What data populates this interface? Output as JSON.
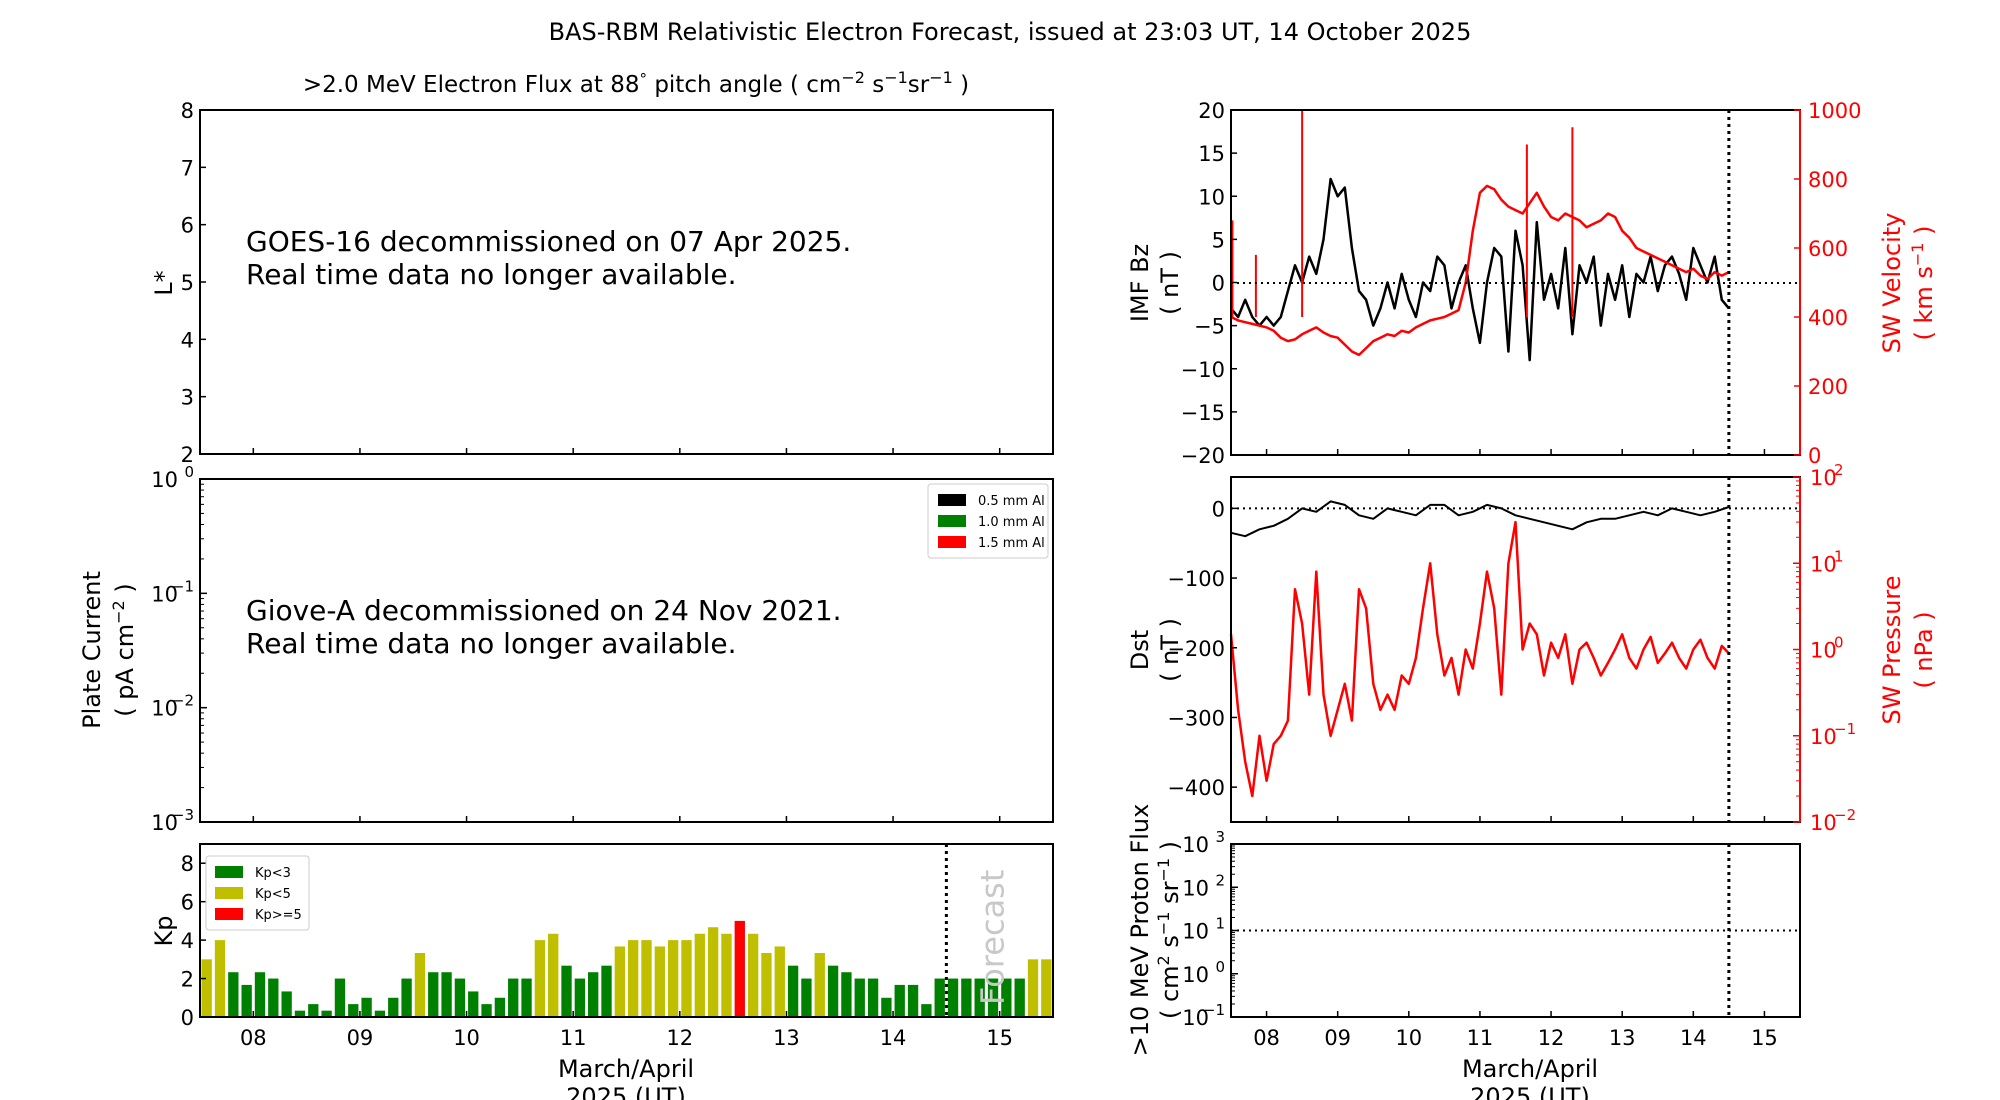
{
  "title": "BAS-RBM Relativistic Electron Forecast, issued at 23:03 UT, 14 October 2025",
  "x_axis": {
    "range": [
      7.5,
      15.5
    ],
    "ticks": [
      8,
      9,
      10,
      11,
      12,
      13,
      14,
      15
    ],
    "tick_labels": [
      "08",
      "09",
      "10",
      "11",
      "12",
      "13",
      "14",
      "15"
    ],
    "label_line1": "March/April",
    "label_line2": "2025 (UT)",
    "now_marker": 14.5
  },
  "chart_data": [
    {
      "id": "electron-flux",
      "type": "heatmap",
      "title": ">2.0 MeV Electron Flux at 88° pitch angle ( cm⁻² s⁻¹ sr⁻¹ )",
      "title_main": ">2.0 MeV Electron Flux at 88",
      "title_deg": "°",
      "title_units": "pitch angle ( cm",
      "ylabel": "L*",
      "ylim": [
        2,
        8
      ],
      "yticks": [
        2,
        3,
        4,
        5,
        6,
        7,
        8
      ],
      "message_line1": "GOES-16 decommissioned on 07 Apr 2025.",
      "message_line2": "Real time data no longer available."
    },
    {
      "id": "plate-current",
      "type": "line",
      "ylabel_line1": "Plate Current",
      "ylabel_line2": "( pA cm⁻² )",
      "yscale": "log",
      "ylim": [
        0.001,
        1
      ],
      "ytick_exponents": [
        -3,
        -2,
        -1,
        0
      ],
      "legend": [
        {
          "label": "0.5 mm Al",
          "color": "#000000"
        },
        {
          "label": "1.0 mm Al",
          "color": "#008000"
        },
        {
          "label": "1.5 mm Al",
          "color": "#ff0000"
        }
      ],
      "legend_position": "top-right",
      "message_line1": "Giove-A decommissioned on 24 Nov 2021.",
      "message_line2": "Real time data no longer available."
    },
    {
      "id": "kp",
      "type": "bar",
      "ylabel": "Kp",
      "ylim": [
        0,
        9
      ],
      "yticks": [
        0,
        2,
        4,
        6,
        8
      ],
      "bin_hours": 3,
      "start_day": 7.5,
      "values": [
        3.0,
        4.0,
        2.33,
        1.67,
        2.33,
        2.0,
        1.33,
        0.33,
        0.67,
        0.33,
        2.0,
        0.67,
        1.0,
        0.33,
        1.0,
        2.0,
        3.33,
        2.33,
        2.33,
        2.0,
        1.33,
        0.67,
        1.0,
        2.0,
        2.0,
        4.0,
        4.33,
        2.67,
        2.0,
        2.33,
        2.67,
        3.67,
        4.0,
        4.0,
        3.67,
        4.0,
        4.0,
        4.33,
        4.67,
        4.33,
        5.0,
        4.33,
        3.33,
        3.67,
        2.67,
        2.0,
        3.33,
        2.67,
        2.33,
        2.0,
        2.0,
        1.0,
        1.67,
        1.67,
        0.67,
        2.0,
        2.0,
        2.0,
        2.0,
        2.0,
        2.0,
        2.0,
        3.0,
        3.0
      ],
      "legend": [
        {
          "label": "Kp<3",
          "color": "#008000"
        },
        {
          "label": "Kp<5",
          "color": "#bfbf00"
        },
        {
          "label": "Kp>=5",
          "color": "#ff0000"
        }
      ],
      "legend_position": "top-left",
      "forecast_label": "Forecast"
    },
    {
      "id": "imf-sw",
      "type": "line",
      "ylabel_line1": "IMF Bz",
      "ylabel_line2": "( nT )",
      "ylim": [
        -20,
        20
      ],
      "yticks": [
        -20,
        -15,
        -10,
        -5,
        0,
        5,
        10,
        15,
        20
      ],
      "y2label_line1": "SW Velocity",
      "y2label_line2": "( km s⁻¹ )",
      "y2lim": [
        0,
        1000
      ],
      "y2ticks": [
        0,
        200,
        400,
        600,
        800,
        1000
      ],
      "series": [
        {
          "name": "IMF Bz",
          "color": "#000000",
          "x": [
            7.5,
            7.6,
            7.7,
            7.8,
            7.9,
            8.0,
            8.1,
            8.2,
            8.3,
            8.4,
            8.5,
            8.6,
            8.7,
            8.8,
            8.9,
            9.0,
            9.1,
            9.2,
            9.3,
            9.4,
            9.5,
            9.6,
            9.7,
            9.8,
            9.9,
            10.0,
            10.1,
            10.2,
            10.3,
            10.4,
            10.5,
            10.6,
            10.7,
            10.8,
            10.9,
            11.0,
            11.1,
            11.2,
            11.3,
            11.4,
            11.5,
            11.6,
            11.7,
            11.8,
            11.9,
            12.0,
            12.1,
            12.2,
            12.3,
            12.4,
            12.5,
            12.6,
            12.7,
            12.8,
            12.9,
            13.0,
            13.1,
            13.2,
            13.3,
            13.4,
            13.5,
            13.6,
            13.7,
            13.8,
            13.9,
            14.0,
            14.1,
            14.2,
            14.3,
            14.4,
            14.5
          ],
          "y": [
            -3,
            -4,
            -2,
            -4,
            -5,
            -4,
            -5,
            -4,
            -1,
            2,
            0,
            3,
            1,
            5,
            12,
            10,
            11,
            4,
            -1,
            -2,
            -5,
            -3,
            0,
            -3,
            1,
            -2,
            -4,
            0,
            -1,
            3,
            2,
            -3,
            0,
            2,
            -3,
            -7,
            0,
            4,
            3,
            -8,
            6,
            2,
            -9,
            7,
            -2,
            1,
            -3,
            4,
            -6,
            2,
            0,
            3,
            -5,
            1,
            -2,
            2,
            -4,
            1,
            0,
            3,
            -1,
            2,
            3,
            1,
            -2,
            4,
            2,
            0,
            3,
            -2,
            -3
          ]
        },
        {
          "name": "SW Velocity",
          "color": "#ff0000",
          "x": [
            7.5,
            7.6,
            7.7,
            7.8,
            7.9,
            8.0,
            8.1,
            8.2,
            8.3,
            8.4,
            8.5,
            8.6,
            8.7,
            8.8,
            8.9,
            9.0,
            9.1,
            9.2,
            9.3,
            9.4,
            9.5,
            9.6,
            9.7,
            9.8,
            9.9,
            10.0,
            10.1,
            10.2,
            10.3,
            10.4,
            10.5,
            10.6,
            10.7,
            10.8,
            10.9,
            11.0,
            11.1,
            11.2,
            11.3,
            11.4,
            11.5,
            11.6,
            11.7,
            11.8,
            11.9,
            12.0,
            12.1,
            12.2,
            12.3,
            12.4,
            12.5,
            12.6,
            12.7,
            12.8,
            12.9,
            13.0,
            13.1,
            13.2,
            13.3,
            13.4,
            13.5,
            13.6,
            13.7,
            13.8,
            13.9,
            14.0,
            14.1,
            14.2,
            14.3,
            14.4,
            14.5
          ],
          "y": [
            400,
            390,
            385,
            380,
            375,
            370,
            360,
            340,
            330,
            335,
            350,
            360,
            370,
            355,
            345,
            340,
            320,
            300,
            290,
            310,
            330,
            340,
            350,
            345,
            360,
            355,
            370,
            380,
            390,
            395,
            400,
            410,
            420,
            500,
            650,
            760,
            780,
            770,
            740,
            720,
            710,
            700,
            730,
            760,
            720,
            690,
            680,
            700,
            690,
            680,
            660,
            670,
            680,
            700,
            690,
            650,
            630,
            600,
            590,
            580,
            570,
            560,
            550,
            540,
            530,
            540,
            520,
            510,
            530,
            520,
            530
          ]
        }
      ],
      "spikes": [
        {
          "x": 7.52,
          "value": 680
        },
        {
          "x": 8.5,
          "value": 1000
        },
        {
          "x": 7.85,
          "value": 580
        },
        {
          "x": 11.66,
          "value": 900
        },
        {
          "x": 12.3,
          "value": 950
        }
      ]
    },
    {
      "id": "dst-pressure",
      "type": "line",
      "ylabel_line1": "Dst",
      "ylabel_line2": "( nT )",
      "ylim": [
        -450,
        45
      ],
      "yticks": [
        -400,
        -300,
        -200,
        -100,
        0
      ],
      "y2label_line1": "SW Pressure",
      "y2label_line2": "( nPa )",
      "y2scale": "log",
      "y2lim": [
        0.01,
        100
      ],
      "y2tick_exponents": [
        -2,
        -1,
        0,
        1,
        2
      ],
      "series": [
        {
          "name": "Dst",
          "color": "#000000",
          "x": [
            7.5,
            7.7,
            7.9,
            8.1,
            8.3,
            8.5,
            8.7,
            8.9,
            9.1,
            9.3,
            9.5,
            9.7,
            9.9,
            10.1,
            10.3,
            10.5,
            10.7,
            10.9,
            11.1,
            11.3,
            11.5,
            11.7,
            11.9,
            12.1,
            12.3,
            12.5,
            12.7,
            12.9,
            13.1,
            13.3,
            13.5,
            13.7,
            13.9,
            14.1,
            14.3,
            14.5
          ],
          "y": [
            -35,
            -40,
            -30,
            -25,
            -15,
            0,
            -5,
            10,
            5,
            -10,
            -15,
            0,
            -5,
            -10,
            5,
            5,
            -10,
            -5,
            5,
            0,
            -10,
            -15,
            -20,
            -25,
            -30,
            -20,
            -15,
            -15,
            -10,
            -5,
            -10,
            0,
            -5,
            -10,
            -5,
            2
          ]
        },
        {
          "name": "SW Pressure",
          "color": "#ff0000",
          "x": [
            7.5,
            7.6,
            7.7,
            7.8,
            7.9,
            8.0,
            8.1,
            8.2,
            8.3,
            8.4,
            8.5,
            8.6,
            8.7,
            8.8,
            8.9,
            9.0,
            9.1,
            9.2,
            9.3,
            9.4,
            9.5,
            9.6,
            9.7,
            9.8,
            9.9,
            10.0,
            10.1,
            10.2,
            10.3,
            10.4,
            10.5,
            10.6,
            10.7,
            10.8,
            10.9,
            11.0,
            11.1,
            11.2,
            11.3,
            11.4,
            11.5,
            11.6,
            11.7,
            11.8,
            11.9,
            12.0,
            12.1,
            12.2,
            12.3,
            12.4,
            12.5,
            12.6,
            12.7,
            12.8,
            12.9,
            13.0,
            13.1,
            13.2,
            13.3,
            13.4,
            13.5,
            13.6,
            13.7,
            13.8,
            13.9,
            14.0,
            14.1,
            14.2,
            14.3,
            14.4,
            14.5
          ],
          "y": [
            1.5,
            0.2,
            0.05,
            0.02,
            0.1,
            0.03,
            0.08,
            0.1,
            0.15,
            5,
            2,
            0.3,
            8,
            0.3,
            0.1,
            0.2,
            0.4,
            0.15,
            5,
            3,
            0.4,
            0.2,
            0.3,
            0.2,
            0.5,
            0.4,
            0.8,
            3,
            10,
            1.5,
            0.5,
            0.8,
            0.3,
            1.0,
            0.6,
            2,
            8,
            3,
            0.3,
            10,
            30,
            1,
            2,
            1.5,
            0.5,
            1.2,
            0.8,
            1.5,
            0.4,
            1.0,
            1.2,
            0.8,
            0.5,
            0.7,
            1.0,
            1.5,
            0.8,
            0.6,
            1.0,
            1.4,
            0.7,
            0.9,
            1.2,
            0.8,
            0.6,
            1.0,
            1.3,
            0.8,
            0.6,
            1.1,
            0.9
          ]
        }
      ]
    },
    {
      "id": "proton-flux",
      "type": "line",
      "ylabel_line1": ">10 MeV Proton Flux",
      "ylabel_line2": "( cm² s⁻¹ sr⁻¹ )",
      "yscale": "log",
      "ylim": [
        0.1,
        1000
      ],
      "ytick_exponents": [
        -1,
        0,
        1,
        2,
        3
      ],
      "threshold": 10,
      "series": []
    }
  ]
}
